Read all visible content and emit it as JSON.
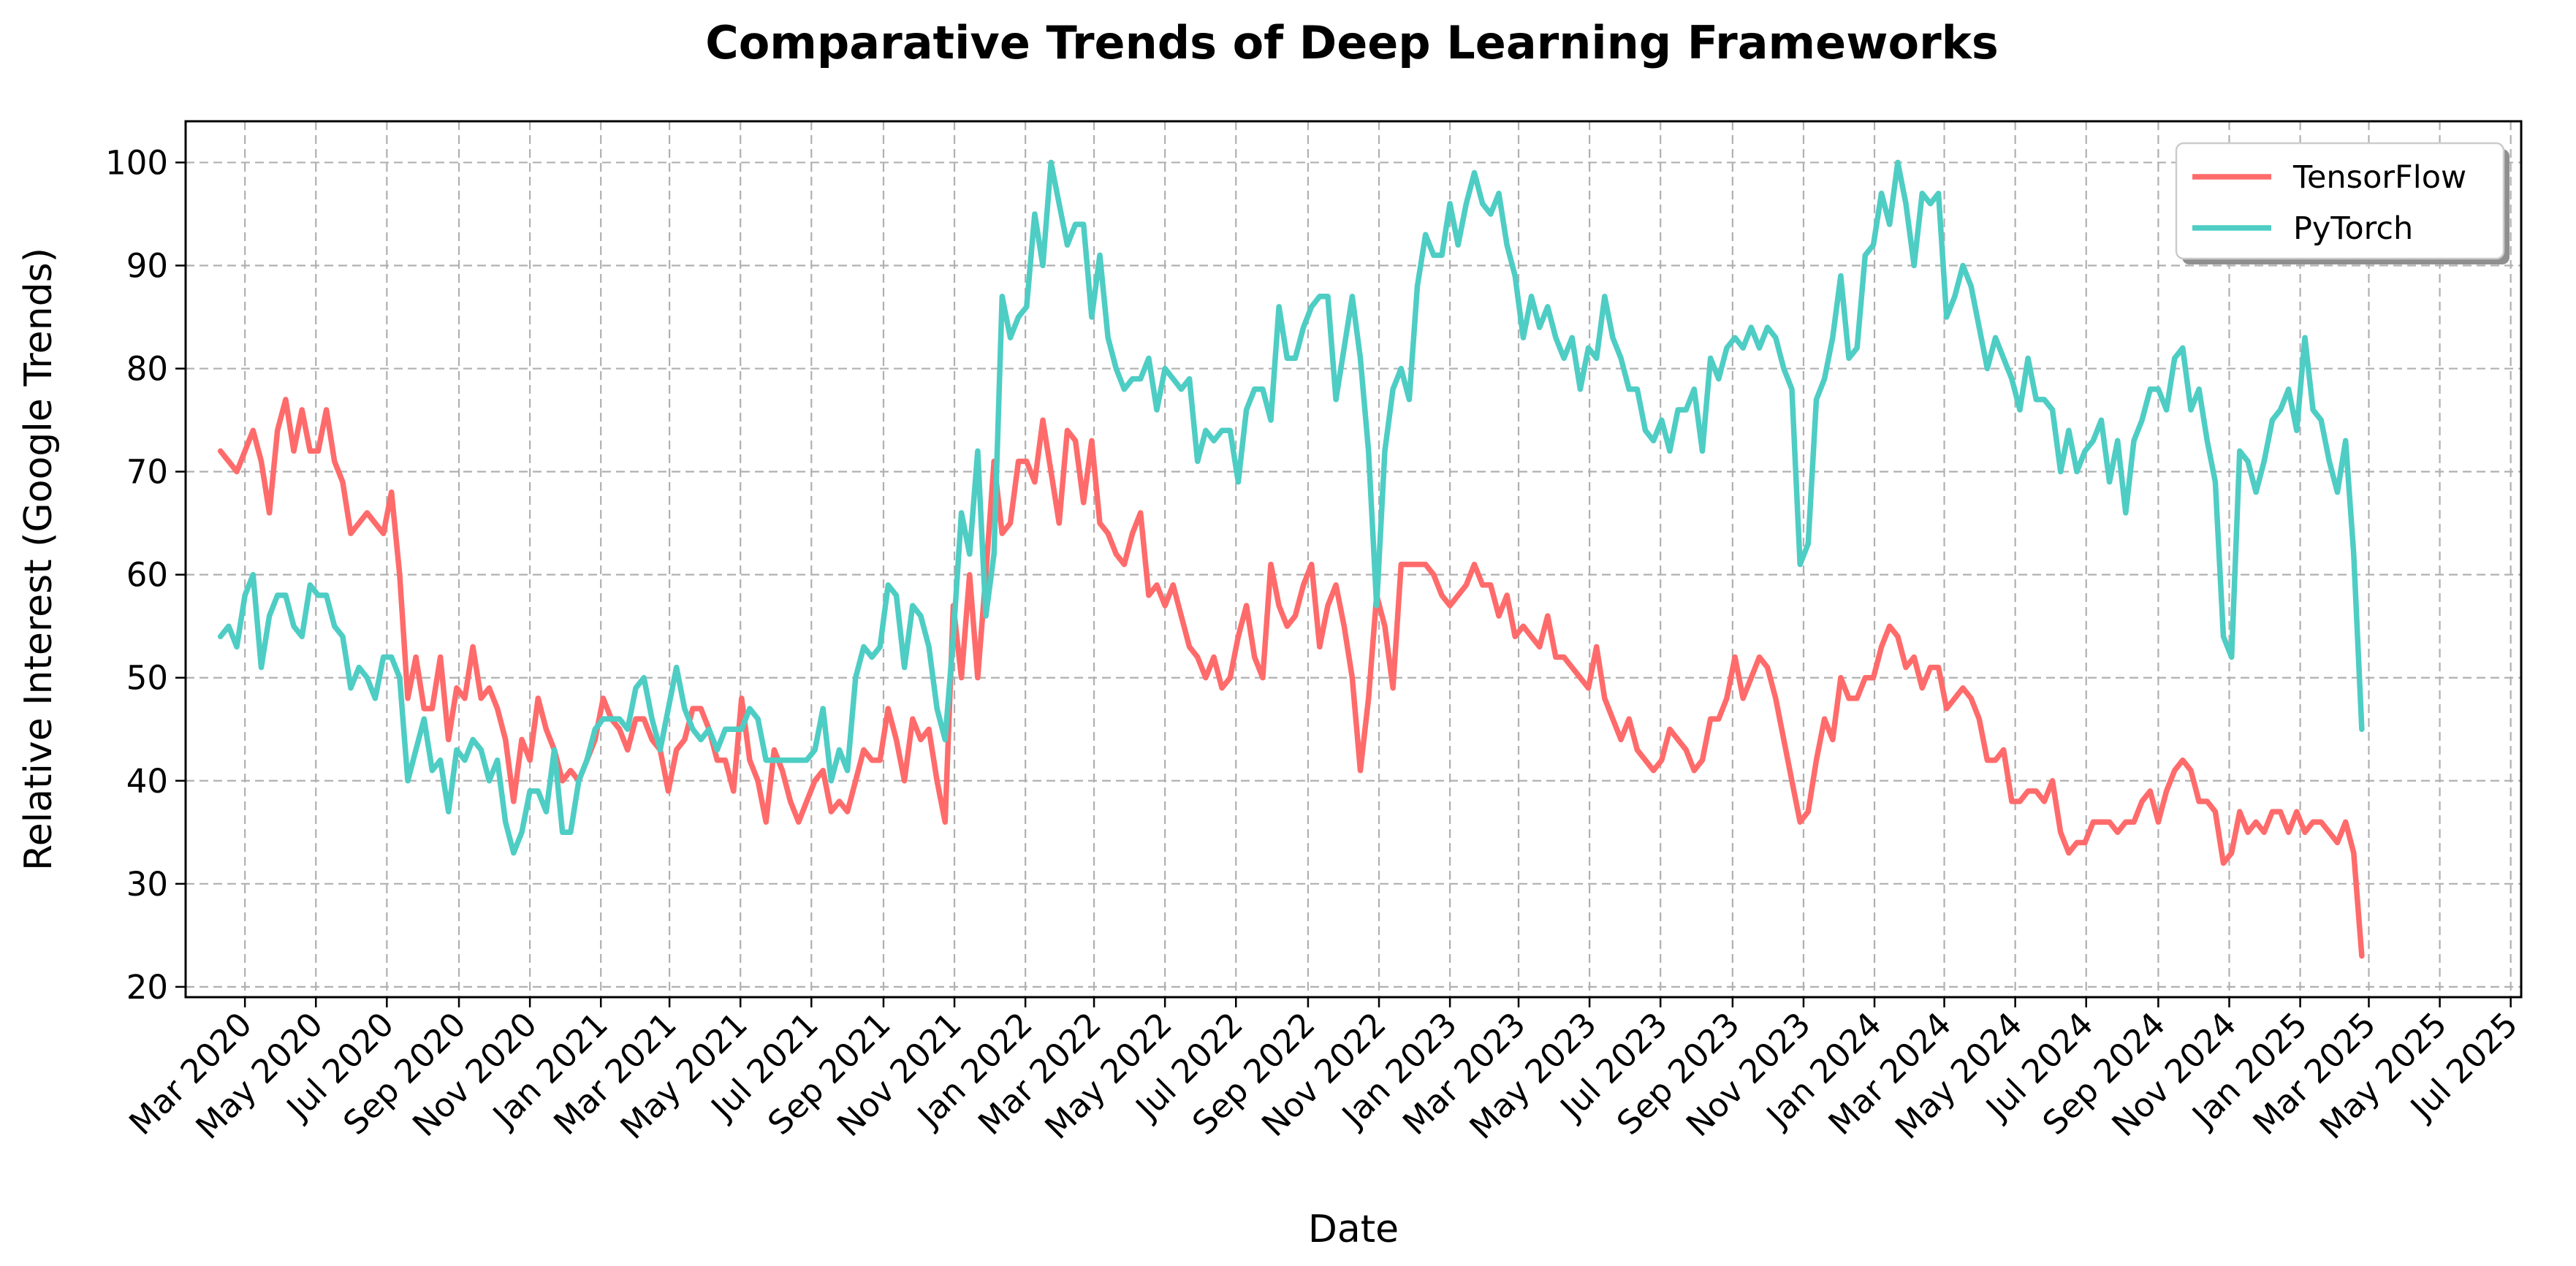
{
  "chart_data": {
    "type": "line",
    "title": "Comparative Trends of Deep Learning Frameworks",
    "xlabel": "Date",
    "ylabel": "Relative Interest (Google Trends)",
    "xlim": [
      "2020-01-10",
      "2025-07-10"
    ],
    "ylim": [
      19,
      104
    ],
    "y_ticks": [
      20,
      30,
      40,
      50,
      60,
      70,
      80,
      90,
      100
    ],
    "x_ticks": [
      {
        "date": "2020-03-01",
        "label": "Mar 2020"
      },
      {
        "date": "2020-05-01",
        "label": "May 2020"
      },
      {
        "date": "2020-07-01",
        "label": "Jul 2020"
      },
      {
        "date": "2020-09-01",
        "label": "Sep 2020"
      },
      {
        "date": "2020-11-01",
        "label": "Nov 2020"
      },
      {
        "date": "2021-01-01",
        "label": "Jan 2021"
      },
      {
        "date": "2021-03-01",
        "label": "Mar 2021"
      },
      {
        "date": "2021-05-01",
        "label": "May 2021"
      },
      {
        "date": "2021-07-01",
        "label": "Jul 2021"
      },
      {
        "date": "2021-09-01",
        "label": "Sep 2021"
      },
      {
        "date": "2021-11-01",
        "label": "Nov 2021"
      },
      {
        "date": "2022-01-01",
        "label": "Jan 2022"
      },
      {
        "date": "2022-03-01",
        "label": "Mar 2022"
      },
      {
        "date": "2022-05-01",
        "label": "May 2022"
      },
      {
        "date": "2022-07-01",
        "label": "Jul 2022"
      },
      {
        "date": "2022-09-01",
        "label": "Sep 2022"
      },
      {
        "date": "2022-11-01",
        "label": "Nov 2022"
      },
      {
        "date": "2023-01-01",
        "label": "Jan 2023"
      },
      {
        "date": "2023-03-01",
        "label": "Mar 2023"
      },
      {
        "date": "2023-05-01",
        "label": "May 2023"
      },
      {
        "date": "2023-07-01",
        "label": "Jul 2023"
      },
      {
        "date": "2023-09-01",
        "label": "Sep 2023"
      },
      {
        "date": "2023-11-01",
        "label": "Nov 2023"
      },
      {
        "date": "2024-01-01",
        "label": "Jan 2024"
      },
      {
        "date": "2024-03-01",
        "label": "Mar 2024"
      },
      {
        "date": "2024-05-01",
        "label": "May 2024"
      },
      {
        "date": "2024-07-01",
        "label": "Jul 2024"
      },
      {
        "date": "2024-09-01",
        "label": "Sep 2024"
      },
      {
        "date": "2024-11-01",
        "label": "Nov 2024"
      },
      {
        "date": "2025-01-01",
        "label": "Jan 2025"
      },
      {
        "date": "2025-03-01",
        "label": "Mar 2025"
      },
      {
        "date": "2025-05-01",
        "label": "May 2025"
      },
      {
        "date": "2025-07-01",
        "label": "Jul 2025"
      }
    ],
    "grid": true,
    "legend_position": "top-right",
    "x_dates": [
      "2020-02-09",
      "2020-02-16",
      "2020-02-23",
      "2020-03-01",
      "2020-03-08",
      "2020-03-15",
      "2020-03-22",
      "2020-03-29",
      "2020-04-05",
      "2020-04-12",
      "2020-04-19",
      "2020-04-26",
      "2020-05-03",
      "2020-05-10",
      "2020-05-17",
      "2020-05-24",
      "2020-05-31",
      "2020-06-07",
      "2020-06-14",
      "2020-06-21",
      "2020-06-28",
      "2020-07-05",
      "2020-07-12",
      "2020-07-19",
      "2020-07-26",
      "2020-08-02",
      "2020-08-09",
      "2020-08-16",
      "2020-08-23",
      "2020-08-30",
      "2020-09-06",
      "2020-09-13",
      "2020-09-20",
      "2020-09-27",
      "2020-10-04",
      "2020-10-11",
      "2020-10-18",
      "2020-10-25",
      "2020-11-01",
      "2020-11-08",
      "2020-11-15",
      "2020-11-22",
      "2020-11-29",
      "2020-12-06",
      "2020-12-13",
      "2020-12-20",
      "2020-12-27",
      "2021-01-03",
      "2021-01-10",
      "2021-01-17",
      "2021-01-24",
      "2021-01-31",
      "2021-02-07",
      "2021-02-14",
      "2021-02-21",
      "2021-02-28",
      "2021-03-07",
      "2021-03-14",
      "2021-03-21",
      "2021-03-28",
      "2021-04-04",
      "2021-04-11",
      "2021-04-18",
      "2021-04-25",
      "2021-05-02",
      "2021-05-09",
      "2021-05-16",
      "2021-05-23",
      "2021-05-30",
      "2021-06-06",
      "2021-06-13",
      "2021-06-20",
      "2021-06-27",
      "2021-07-04",
      "2021-07-11",
      "2021-07-18",
      "2021-07-25",
      "2021-08-01",
      "2021-08-08",
      "2021-08-15",
      "2021-08-22",
      "2021-08-29",
      "2021-09-05",
      "2021-09-12",
      "2021-09-19",
      "2021-09-26",
      "2021-10-03",
      "2021-10-10",
      "2021-10-17",
      "2021-10-24",
      "2021-10-31",
      "2021-11-07",
      "2021-11-14",
      "2021-11-21",
      "2021-11-28",
      "2021-12-05",
      "2021-12-12",
      "2021-12-19",
      "2021-12-26",
      "2022-01-02",
      "2022-01-09",
      "2022-01-16",
      "2022-01-23",
      "2022-01-30",
      "2022-02-06",
      "2022-02-13",
      "2022-02-20",
      "2022-02-27",
      "2022-03-06",
      "2022-03-13",
      "2022-03-20",
      "2022-03-27",
      "2022-04-03",
      "2022-04-10",
      "2022-04-17",
      "2022-04-24",
      "2022-05-01",
      "2022-05-08",
      "2022-05-15",
      "2022-05-22",
      "2022-05-29",
      "2022-06-05",
      "2022-06-12",
      "2022-06-19",
      "2022-06-26",
      "2022-07-03",
      "2022-07-10",
      "2022-07-17",
      "2022-07-24",
      "2022-07-31",
      "2022-08-07",
      "2022-08-14",
      "2022-08-21",
      "2022-08-28",
      "2022-09-04",
      "2022-09-11",
      "2022-09-18",
      "2022-09-25",
      "2022-10-02",
      "2022-10-09",
      "2022-10-16",
      "2022-10-23",
      "2022-10-30",
      "2022-11-06",
      "2022-11-13",
      "2022-11-20",
      "2022-11-27",
      "2022-12-04",
      "2022-12-11",
      "2022-12-18",
      "2022-12-25",
      "2023-01-01",
      "2023-01-08",
      "2023-01-15",
      "2023-01-22",
      "2023-01-29",
      "2023-02-05",
      "2023-02-12",
      "2023-02-19",
      "2023-02-26",
      "2023-03-05",
      "2023-03-12",
      "2023-03-19",
      "2023-03-26",
      "2023-04-02",
      "2023-04-09",
      "2023-04-16",
      "2023-04-23",
      "2023-04-30",
      "2023-05-07",
      "2023-05-14",
      "2023-05-21",
      "2023-05-28",
      "2023-06-04",
      "2023-06-11",
      "2023-06-18",
      "2023-06-25",
      "2023-07-02",
      "2023-07-09",
      "2023-07-16",
      "2023-07-23",
      "2023-07-30",
      "2023-08-06",
      "2023-08-13",
      "2023-08-20",
      "2023-08-27",
      "2023-09-03",
      "2023-09-10",
      "2023-09-17",
      "2023-09-24",
      "2023-10-01",
      "2023-10-08",
      "2023-10-15",
      "2023-10-22",
      "2023-10-29",
      "2023-11-05",
      "2023-11-12",
      "2023-11-19",
      "2023-11-26",
      "2023-12-03",
      "2023-12-10",
      "2023-12-17",
      "2023-12-24",
      "2023-12-31",
      "2024-01-07",
      "2024-01-14",
      "2024-01-21",
      "2024-01-28",
      "2024-02-04",
      "2024-02-11",
      "2024-02-18",
      "2024-02-25",
      "2024-03-03",
      "2024-03-10",
      "2024-03-17",
      "2024-03-24",
      "2024-03-31",
      "2024-04-07",
      "2024-04-14",
      "2024-04-21",
      "2024-04-28",
      "2024-05-05",
      "2024-05-12",
      "2024-05-19",
      "2024-05-26",
      "2024-06-02",
      "2024-06-09",
      "2024-06-16",
      "2024-06-23",
      "2024-06-30",
      "2024-07-07",
      "2024-07-14",
      "2024-07-21",
      "2024-07-28",
      "2024-08-04",
      "2024-08-11",
      "2024-08-18",
      "2024-08-25",
      "2024-09-01",
      "2024-09-08",
      "2024-09-15",
      "2024-09-22",
      "2024-09-29",
      "2024-10-06",
      "2024-10-13",
      "2024-10-20",
      "2024-10-27",
      "2024-11-03",
      "2024-11-10",
      "2024-11-17",
      "2024-11-24",
      "2024-12-01",
      "2024-12-08",
      "2024-12-15",
      "2024-12-22",
      "2024-12-29",
      "2025-01-05",
      "2025-01-12",
      "2025-01-19",
      "2025-01-26",
      "2025-02-02",
      "2025-02-09",
      "2025-02-16",
      "2025-02-23",
      "2025-03-02",
      "2025-03-09",
      "2025-03-16",
      "2025-03-23",
      "2025-03-30",
      "2025-04-06",
      "2025-04-13",
      "2025-04-20",
      "2025-04-27",
      "2025-05-04"
    ],
    "series": [
      {
        "name": "TensorFlow",
        "color": "#ff6b6b",
        "values": [
          72,
          71,
          70,
          72,
          74,
          71,
          66,
          74,
          77,
          72,
          76,
          72,
          72,
          76,
          71,
          69,
          64,
          65,
          66,
          65,
          64,
          68,
          60,
          48,
          52,
          47,
          47,
          52,
          44,
          49,
          48,
          53,
          48,
          49,
          47,
          44,
          38,
          44,
          42,
          48,
          45,
          43,
          40,
          41,
          40,
          42,
          44,
          48,
          46,
          45,
          43,
          46,
          46,
          44,
          43,
          39,
          43,
          44,
          47,
          47,
          45,
          42,
          42,
          39,
          48,
          42,
          40,
          36,
          43,
          41,
          38,
          36,
          38,
          40,
          41,
          37,
          38,
          37,
          40,
          43,
          42,
          42,
          47,
          44,
          40,
          46,
          44,
          45,
          40,
          36,
          57,
          50,
          60,
          50,
          60,
          71,
          64,
          65,
          71,
          71,
          69,
          75,
          70,
          65,
          74,
          73,
          67,
          73,
          65,
          64,
          62,
          61,
          64,
          66,
          58,
          59,
          57,
          59,
          56,
          53,
          52,
          50,
          52,
          49,
          50,
          54,
          57,
          52,
          50,
          61,
          57,
          55,
          56,
          59,
          61,
          53,
          57,
          59,
          55,
          50,
          41,
          48,
          58,
          55,
          49,
          61,
          61,
          61,
          61,
          60,
          58,
          57,
          58,
          59,
          61,
          59,
          59,
          56,
          58,
          54,
          55,
          54,
          53,
          56,
          52,
          52,
          51,
          50,
          49,
          53,
          48,
          46,
          44,
          46,
          43,
          42,
          41,
          42,
          45,
          44,
          43,
          41,
          42,
          46,
          46,
          48,
          52,
          48,
          50,
          52,
          51,
          48,
          44,
          40,
          36,
          37,
          42,
          46,
          44,
          50,
          48,
          48,
          50,
          50,
          53,
          55,
          54,
          51,
          52,
          49,
          51,
          51,
          47,
          48,
          49,
          48,
          46,
          42,
          42,
          43,
          38,
          38,
          39,
          39,
          38,
          40,
          35,
          33,
          34,
          34,
          36,
          36,
          36,
          35,
          36,
          36,
          38,
          39,
          36,
          39,
          41,
          42,
          41,
          38,
          38,
          37,
          32,
          33,
          37,
          35,
          36,
          35,
          37,
          37,
          35,
          37,
          35,
          36,
          36,
          35,
          34,
          36,
          33,
          23
        ]
      },
      {
        "name": "PyTorch",
        "color": "#4ecdc4",
        "values": [
          54,
          55,
          53,
          58,
          60,
          51,
          56,
          58,
          58,
          55,
          54,
          59,
          58,
          58,
          55,
          54,
          49,
          51,
          50,
          48,
          52,
          52,
          50,
          40,
          43,
          46,
          41,
          42,
          37,
          43,
          42,
          44,
          43,
          40,
          42,
          36,
          33,
          35,
          39,
          39,
          37,
          43,
          35,
          35,
          40,
          42,
          45,
          46,
          46,
          46,
          45,
          49,
          50,
          46,
          43,
          47,
          51,
          47,
          45,
          44,
          45,
          43,
          45,
          45,
          45,
          47,
          46,
          42,
          42,
          42,
          42,
          42,
          42,
          43,
          47,
          40,
          43,
          41,
          50,
          53,
          52,
          53,
          59,
          58,
          51,
          57,
          56,
          53,
          47,
          44,
          54,
          66,
          62,
          72,
          56,
          62,
          87,
          83,
          85,
          86,
          95,
          90,
          100,
          96,
          92,
          94,
          94,
          85,
          91,
          83,
          80,
          78,
          79,
          79,
          81,
          76,
          80,
          79,
          78,
          79,
          71,
          74,
          73,
          74,
          74,
          69,
          76,
          78,
          78,
          75,
          86,
          81,
          81,
          84,
          86,
          87,
          87,
          77,
          82,
          87,
          81,
          72,
          57,
          72,
          78,
          80,
          77,
          88,
          93,
          91,
          91,
          96,
          92,
          96,
          99,
          96,
          95,
          97,
          92,
          89,
          83,
          87,
          84,
          86,
          83,
          81,
          83,
          78,
          82,
          81,
          87,
          83,
          81,
          78,
          78,
          74,
          73,
          75,
          72,
          76,
          76,
          78,
          72,
          81,
          79,
          82,
          83,
          82,
          84,
          82,
          84,
          83,
          80,
          78,
          61,
          63,
          77,
          79,
          83,
          89,
          81,
          82,
          91,
          92,
          97,
          94,
          100,
          96,
          90,
          97,
          96,
          97,
          85,
          87,
          90,
          88,
          84,
          80,
          83,
          81,
          79,
          76,
          81,
          77,
          77,
          76,
          70,
          74,
          70,
          72,
          73,
          75,
          69,
          73,
          66,
          73,
          75,
          78,
          78,
          76,
          81,
          82,
          76,
          78,
          73,
          69,
          54,
          52,
          72,
          71,
          68,
          71,
          75,
          76,
          78,
          74,
          83,
          76,
          75,
          71,
          68,
          73,
          62,
          45
        ]
      }
    ]
  }
}
